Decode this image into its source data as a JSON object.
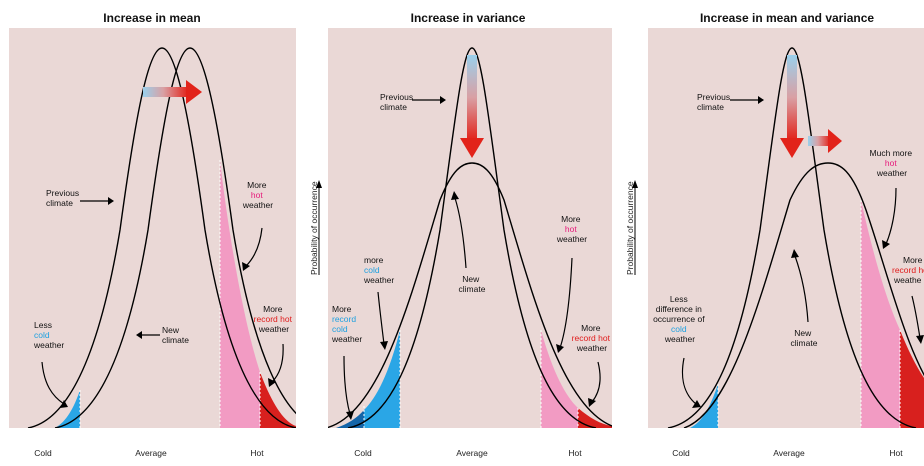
{
  "panels": [
    {
      "title": "Increase in mean",
      "labels": {
        "previous_climate": [
          "Previous",
          "climate"
        ],
        "new_climate": [
          "New",
          "climate"
        ],
        "less_cold": {
          "l1": "Less",
          "l2": "cold",
          "l3": "weather"
        },
        "more_hot": {
          "l1": "More",
          "l2": "hot",
          "l3": "weather"
        },
        "more_record_hot": {
          "l1": "More",
          "l2": "record hot",
          "l3": "weather"
        }
      },
      "x_axis": {
        "cold": "Cold",
        "average": "Average",
        "hot": "Hot"
      }
    },
    {
      "title": "Increase in variance",
      "y_axis_label": "Probability of occurrence",
      "labels": {
        "previous_climate": [
          "Previous",
          "climate"
        ],
        "new_climate": [
          "New",
          "climate"
        ],
        "more_record_cold": {
          "l1": "More",
          "l2": "record",
          "l3": "cold",
          "l4": "weather"
        },
        "more_cold": {
          "l1": "more",
          "l2": "cold",
          "l3": "weather"
        },
        "more_hot": {
          "l1": "More",
          "l2": "hot",
          "l3": "weather"
        },
        "more_record_hot": {
          "l1": "More",
          "l2": "record hot",
          "l3": "weather"
        }
      },
      "x_axis": {
        "cold": "Cold",
        "average": "Average",
        "hot": "Hot"
      }
    },
    {
      "title": "Increase in mean and variance",
      "y_axis_label": "Probability of occurrence",
      "labels": {
        "previous_climate": [
          "Previous",
          "climate"
        ],
        "new_climate": [
          "New",
          "climate"
        ],
        "less_difference_cold": {
          "l1": "Less",
          "l2": "difference in",
          "l3": "occurrence of",
          "l4": "cold",
          "l5": "weather"
        },
        "much_more_hot": {
          "l1": "Much more",
          "l2": "hot",
          "l3": "weather"
        },
        "more_record_hot": {
          "l1": "More",
          "l2": "record ho",
          "l3": "weathe"
        }
      },
      "x_axis": {
        "cold": "Cold",
        "average": "Average",
        "hot": "Hot"
      }
    }
  ],
  "colors": {
    "background": "#ead8d6",
    "cold": "#2aa6e6",
    "record_cold": "#1465a8",
    "hot": "#f29bc3",
    "record_hot": "#d8201e",
    "cold_text": "#1ea0e0",
    "hot_text": "#e6187a",
    "record_text": "#e01b1b",
    "arrow_red": "#e2231a",
    "arrow_blue": "#9ad0ec"
  }
}
